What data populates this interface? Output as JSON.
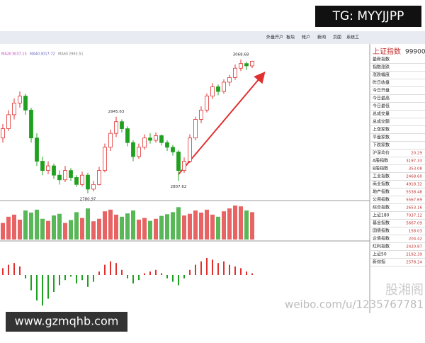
{
  "watermark_top": "TG: MYYJJPP",
  "toolbar": [
    "外盘开户",
    "板块",
    "帐户",
    "新闻",
    "页面",
    "系统工"
  ],
  "ma_legend": [
    {
      "name": "MA20",
      "value": 3037.13,
      "color": "#c040c0"
    },
    {
      "name": "MA40",
      "value": 3017.72,
      "color": "#6060c0"
    },
    {
      "name": "MA60",
      "value": 2983.51,
      "color": "#808080"
    }
  ],
  "price": {
    "ylim": [
      2770,
      3090
    ],
    "up_color": "#e03030",
    "down_color": "#20a020",
    "candles": [
      [
        2900,
        2930,
        2890,
        2920
      ],
      [
        2920,
        2960,
        2915,
        2950
      ],
      [
        2950,
        2985,
        2940,
        2975
      ],
      [
        2975,
        3000,
        2965,
        2990
      ],
      [
        2990,
        2995,
        2950,
        2960
      ],
      [
        2960,
        2965,
        2890,
        2900
      ],
      [
        2900,
        2910,
        2840,
        2850
      ],
      [
        2850,
        2860,
        2820,
        2830
      ],
      [
        2830,
        2850,
        2822,
        2840
      ],
      [
        2840,
        2845,
        2812,
        2820
      ],
      [
        2820,
        2830,
        2800,
        2810
      ],
      [
        2810,
        2840,
        2805,
        2830
      ],
      [
        2830,
        2835,
        2808,
        2815
      ],
      [
        2815,
        2820,
        2795,
        2800
      ],
      [
        2800,
        2828,
        2796,
        2820
      ],
      [
        2820,
        2825,
        2780.97,
        2790
      ],
      [
        2790,
        2808,
        2785,
        2800
      ],
      [
        2800,
        2838,
        2798,
        2830
      ],
      [
        2830,
        2888,
        2826,
        2880
      ],
      [
        2880,
        2918,
        2872,
        2910
      ],
      [
        2910,
        2945.63,
        2902,
        2935
      ],
      [
        2935,
        2940,
        2912,
        2920
      ],
      [
        2920,
        2925,
        2882,
        2890
      ],
      [
        2890,
        2895,
        2850,
        2860
      ],
      [
        2860,
        2888,
        2855,
        2880
      ],
      [
        2880,
        2908,
        2875,
        2900
      ],
      [
        2900,
        2910,
        2888,
        2895
      ],
      [
        2895,
        2912,
        2890,
        2905
      ],
      [
        2905,
        2908,
        2884,
        2890
      ],
      [
        2890,
        2895,
        2872,
        2880
      ],
      [
        2880,
        2885,
        2862,
        2870
      ],
      [
        2870,
        2874,
        2807.62,
        2830
      ],
      [
        2830,
        2858,
        2825,
        2850
      ],
      [
        2850,
        2908,
        2846,
        2900
      ],
      [
        2900,
        2946,
        2895,
        2940
      ],
      [
        2940,
        2968,
        2932,
        2960
      ],
      [
        2960,
        2996,
        2955,
        2990
      ],
      [
        2990,
        3018,
        2984,
        3010
      ],
      [
        3010,
        3015,
        2992,
        3000
      ],
      [
        3000,
        3026,
        2995,
        3020
      ],
      [
        3020,
        3036,
        3012,
        3030
      ],
      [
        3030,
        3058,
        3025,
        3050
      ],
      [
        3050,
        3068.68,
        3044,
        3060
      ],
      [
        3060,
        3064,
        3046,
        3055
      ],
      [
        3055,
        3066,
        3050,
        3065
      ]
    ],
    "annotations": [
      3068.68,
      2945.63,
      2780.97,
      2807.62
    ]
  },
  "volume": [
    40,
    55,
    60,
    48,
    70,
    65,
    72,
    50,
    45,
    58,
    62,
    40,
    47,
    66,
    52,
    75,
    44,
    50,
    68,
    72,
    60,
    55,
    63,
    70,
    48,
    52,
    45,
    50,
    57,
    61,
    66,
    78,
    58,
    62,
    70,
    65,
    72,
    60,
    55,
    68,
    75,
    82,
    80,
    70,
    66
  ],
  "macd": [
    8,
    12,
    14,
    10,
    -4,
    -18,
    -30,
    -36,
    -28,
    -20,
    -12,
    -6,
    -2,
    -10,
    -6,
    -14,
    -8,
    4,
    12,
    16,
    14,
    6,
    -4,
    -10,
    -6,
    2,
    4,
    6,
    2,
    -4,
    -8,
    -12,
    -4,
    6,
    12,
    16,
    20,
    18,
    14,
    16,
    12,
    10,
    8,
    4,
    2
  ],
  "quote_panel": {
    "title": "上证指数",
    "code": "99900",
    "rows": [
      [
        "最新指数",
        ""
      ],
      [
        "指数涨跌",
        ""
      ],
      [
        "涨跌幅度",
        ""
      ],
      [
        "昨日收盘",
        ""
      ],
      [
        "今日开盘",
        ""
      ],
      [
        "今日最高",
        ""
      ],
      [
        "今日最低",
        ""
      ],
      [
        "总成交量",
        ""
      ],
      [
        "总成交额",
        ""
      ],
      [
        "上涨家数",
        ""
      ],
      [
        "平盘家数",
        ""
      ],
      [
        "下跌家数",
        ""
      ],
      [
        "沪深均价",
        "20.29"
      ],
      [
        "A股指数",
        "3197.33"
      ],
      [
        "B股指数",
        "353.08"
      ],
      [
        "工业指数",
        "2468.60"
      ],
      [
        "商业指数",
        "4918.32"
      ],
      [
        "地产指数",
        "5538.48"
      ],
      [
        "公用指数",
        "5567.69"
      ],
      [
        "综合指数",
        "2653.16"
      ],
      [
        "上证180",
        "7037.12"
      ],
      [
        "基金指数",
        "5667.09"
      ],
      [
        "国债指数",
        "158.03"
      ],
      [
        "企债指数",
        "204.42"
      ],
      [
        "红利指数",
        "2420.87"
      ],
      [
        "上证50",
        "2192.39"
      ],
      [
        "新综指",
        "2578.24"
      ]
    ]
  },
  "watermark_bottom_left": "www.gzmqhb.com",
  "watermark_bottom_right": "weibo.com/u/1235767781",
  "watermark_logo": "股湘阁"
}
